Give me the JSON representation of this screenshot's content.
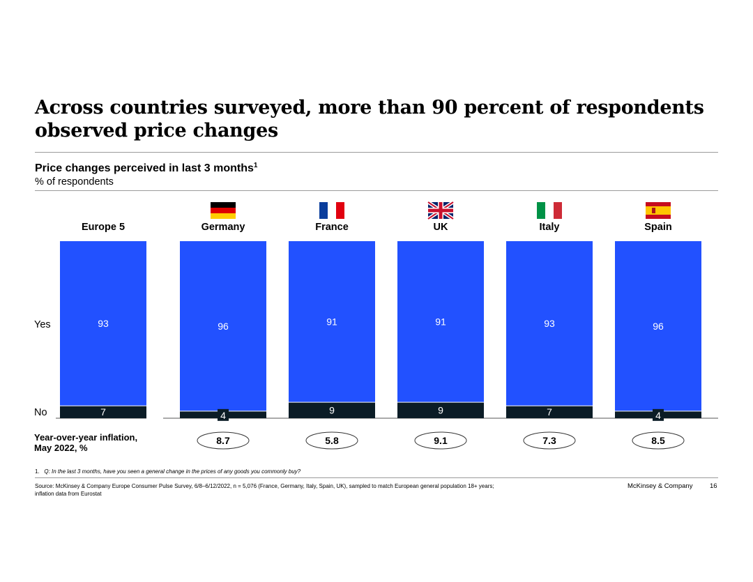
{
  "slide": {
    "title": "Across countries surveyed, more than 90 percent of respondents observed price changes",
    "subtitle": "Price changes perceived in last 3 months",
    "subtitle_footnote_mark": "1",
    "unit_label": "% of respondents",
    "footnote_number": "1.",
    "footnote_question": "Q: In the last 3 months, have you seen a general change in the prices of any goods you commonly buy?",
    "source_line1": "Source: McKinsey & Company Europe Consumer Pulse Survey, 6/8–6/12/2022, n = 5,076 (France, Germany, Italy, Spain, UK), sampled to match European general population 18+ years;",
    "source_line2": "inflation data from Eurostat",
    "brand": "McKinsey & Company",
    "page_number": "16"
  },
  "chart_data": {
    "type": "bar",
    "stacked": true,
    "categories": [
      "Europe 5",
      "Germany",
      "France",
      "UK",
      "Italy",
      "Spain"
    ],
    "series": [
      {
        "name": "No",
        "values": [
          7,
          4,
          9,
          9,
          7,
          4
        ],
        "color": "#0b1c26"
      },
      {
        "name": "Yes",
        "values": [
          93,
          96,
          91,
          91,
          93,
          96
        ],
        "color": "#2251ff"
      }
    ],
    "row_labels": {
      "yes": "Yes",
      "no": "No"
    },
    "inflation": {
      "label_line1": "Year-over-year inflation,",
      "label_line2": "May 2022, %",
      "values": [
        null,
        "8.7",
        "5.8",
        "9.1",
        "7.3",
        "8.5"
      ]
    },
    "ylim": [
      0,
      100
    ],
    "flags": [
      "",
      "germany-flag",
      "france-flag",
      "uk-flag",
      "italy-flag",
      "spain-flag"
    ],
    "colors": {
      "yes": "#2251ff",
      "no": "#0b1c26",
      "label_on_bar": "#ffffff"
    }
  }
}
